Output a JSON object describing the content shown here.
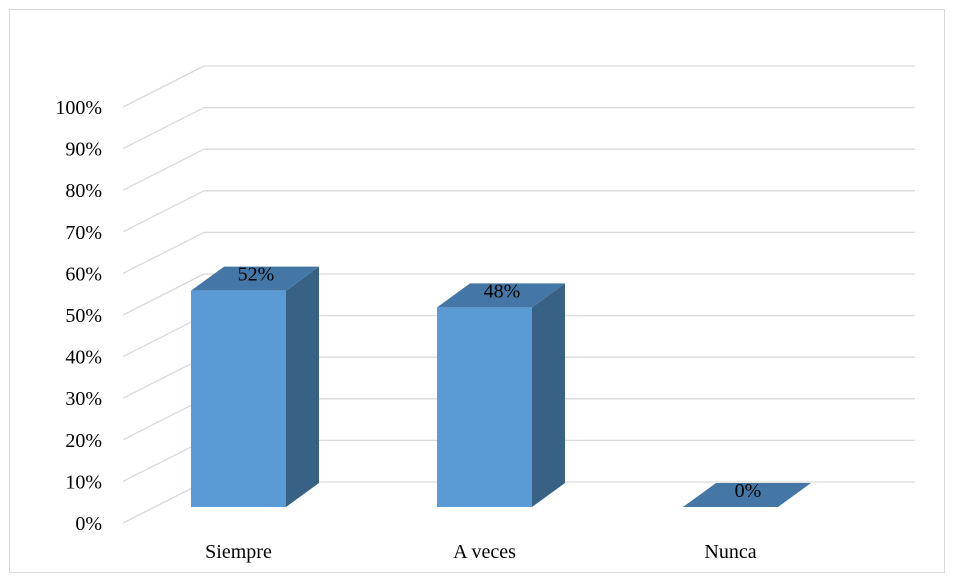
{
  "chart_data": {
    "type": "bar",
    "style": "3d-column",
    "categories": [
      "Siempre",
      "A veces",
      "Nunca"
    ],
    "values": [
      52,
      48,
      0
    ],
    "data_labels": [
      "52%",
      "48%",
      "0%"
    ],
    "title": "",
    "xlabel": "",
    "ylabel": "",
    "ylim": [
      0,
      100
    ],
    "y_ticks": [
      "0%",
      "10%",
      "20%",
      "30%",
      "40%",
      "50%",
      "60%",
      "70%",
      "80%",
      "90%",
      "100%"
    ],
    "grid": true,
    "legend": "none",
    "colors": {
      "bar_front": "#5b9bd5",
      "bar_side": "#376285",
      "bar_top": "#4577a6",
      "grid": "#d9d9d9"
    }
  }
}
